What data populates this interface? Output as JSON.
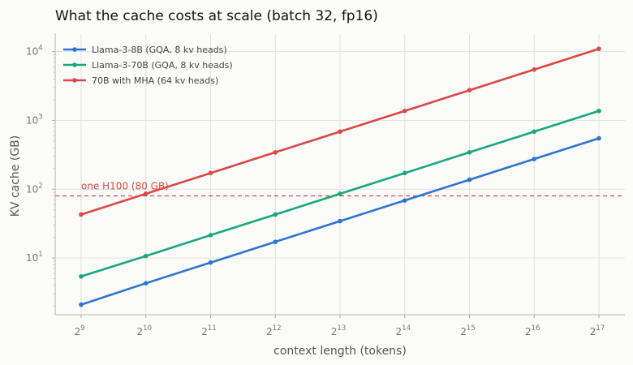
{
  "chart_data": {
    "type": "line",
    "title": "What the cache costs at scale (batch 32, fp16)",
    "xlabel": "context length (tokens)",
    "ylabel": "KV cache (GB)",
    "x_scale": "log2",
    "y_scale": "log10",
    "x": [
      512,
      1024,
      2048,
      4096,
      8192,
      16384,
      32768,
      65536,
      131072
    ],
    "x_tick_exponents": [
      "9",
      "10",
      "11",
      "12",
      "13",
      "14",
      "15",
      "16",
      "17"
    ],
    "y_tick_exponents": [
      "1",
      "2",
      "3",
      "4"
    ],
    "tick_base_x": "2",
    "tick_base_y": "10",
    "ylim": [
      1.5,
      18000
    ],
    "grid": true,
    "legend_position": "top-left",
    "series": [
      {
        "name": "Llama-3-8B (GQA, 8 kv heads)",
        "color": "#2e75d0",
        "values": [
          2.1,
          4.3,
          8.6,
          17.2,
          34.4,
          68.7,
          137.4,
          274.9,
          549.8
        ]
      },
      {
        "name": "Llama-3-70B (GQA, 8 kv heads)",
        "color": "#1aa87a",
        "values": [
          5.4,
          10.7,
          21.5,
          42.9,
          85.9,
          171.8,
          343.6,
          687.2,
          1374.4
        ]
      },
      {
        "name": "70B with MHA (64 kv heads)",
        "color": "#dd4747",
        "values": [
          42.9,
          85.9,
          171.8,
          343.6,
          687.2,
          1374.4,
          2748.8,
          5497.6,
          10995.1
        ]
      }
    ],
    "reference_line": {
      "label": "one H100 (80 GB)",
      "value": 80,
      "color": "#dd4747"
    }
  }
}
